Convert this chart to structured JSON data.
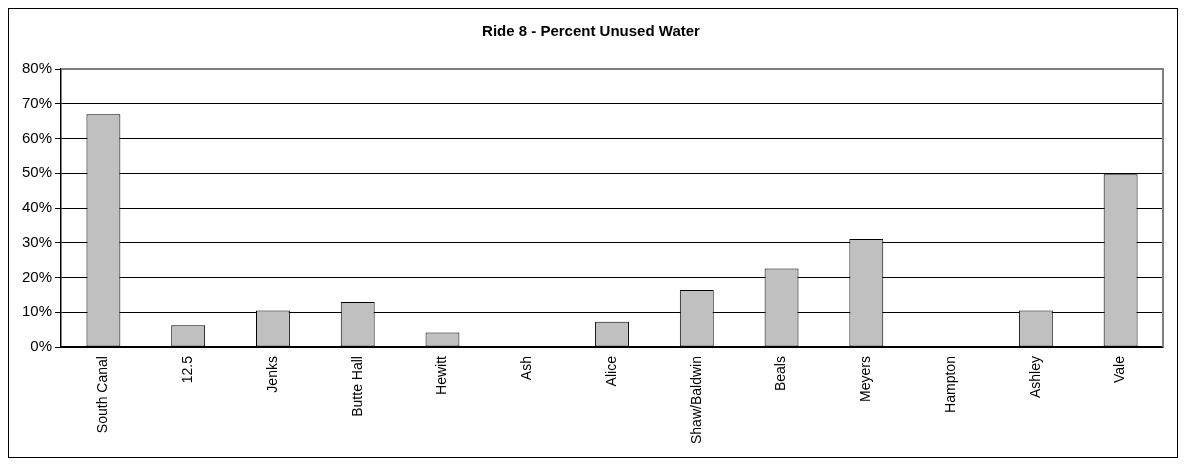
{
  "chart_data": {
    "type": "bar",
    "title": "Ride 8 - Percent Unused Water",
    "categories": [
      "South Canal",
      "12.5",
      "Jenks",
      "Butte Hall",
      "Hewitt",
      "Ash",
      "Alice",
      "Shaw/Baldwin",
      "Beals",
      "Meyers",
      "Hampton",
      "Ashley",
      "Vale"
    ],
    "values": [
      67,
      6.3,
      10.5,
      13,
      4.2,
      0,
      7.3,
      16.4,
      22.6,
      31.1,
      0,
      10.5,
      49.7
    ],
    "color": "#c0c0c0",
    "ylim": [
      0,
      80
    ],
    "yticks": [
      {
        "value": 0,
        "label": "0%"
      },
      {
        "value": 10,
        "label": "10%"
      },
      {
        "value": 20,
        "label": "20%"
      },
      {
        "value": 30,
        "label": "30%"
      },
      {
        "value": 40,
        "label": "40%"
      },
      {
        "value": 50,
        "label": "50%"
      },
      {
        "value": 60,
        "label": "60%"
      },
      {
        "value": 70,
        "label": "70%"
      },
      {
        "value": 80,
        "label": "80%"
      }
    ],
    "grid": "y"
  }
}
